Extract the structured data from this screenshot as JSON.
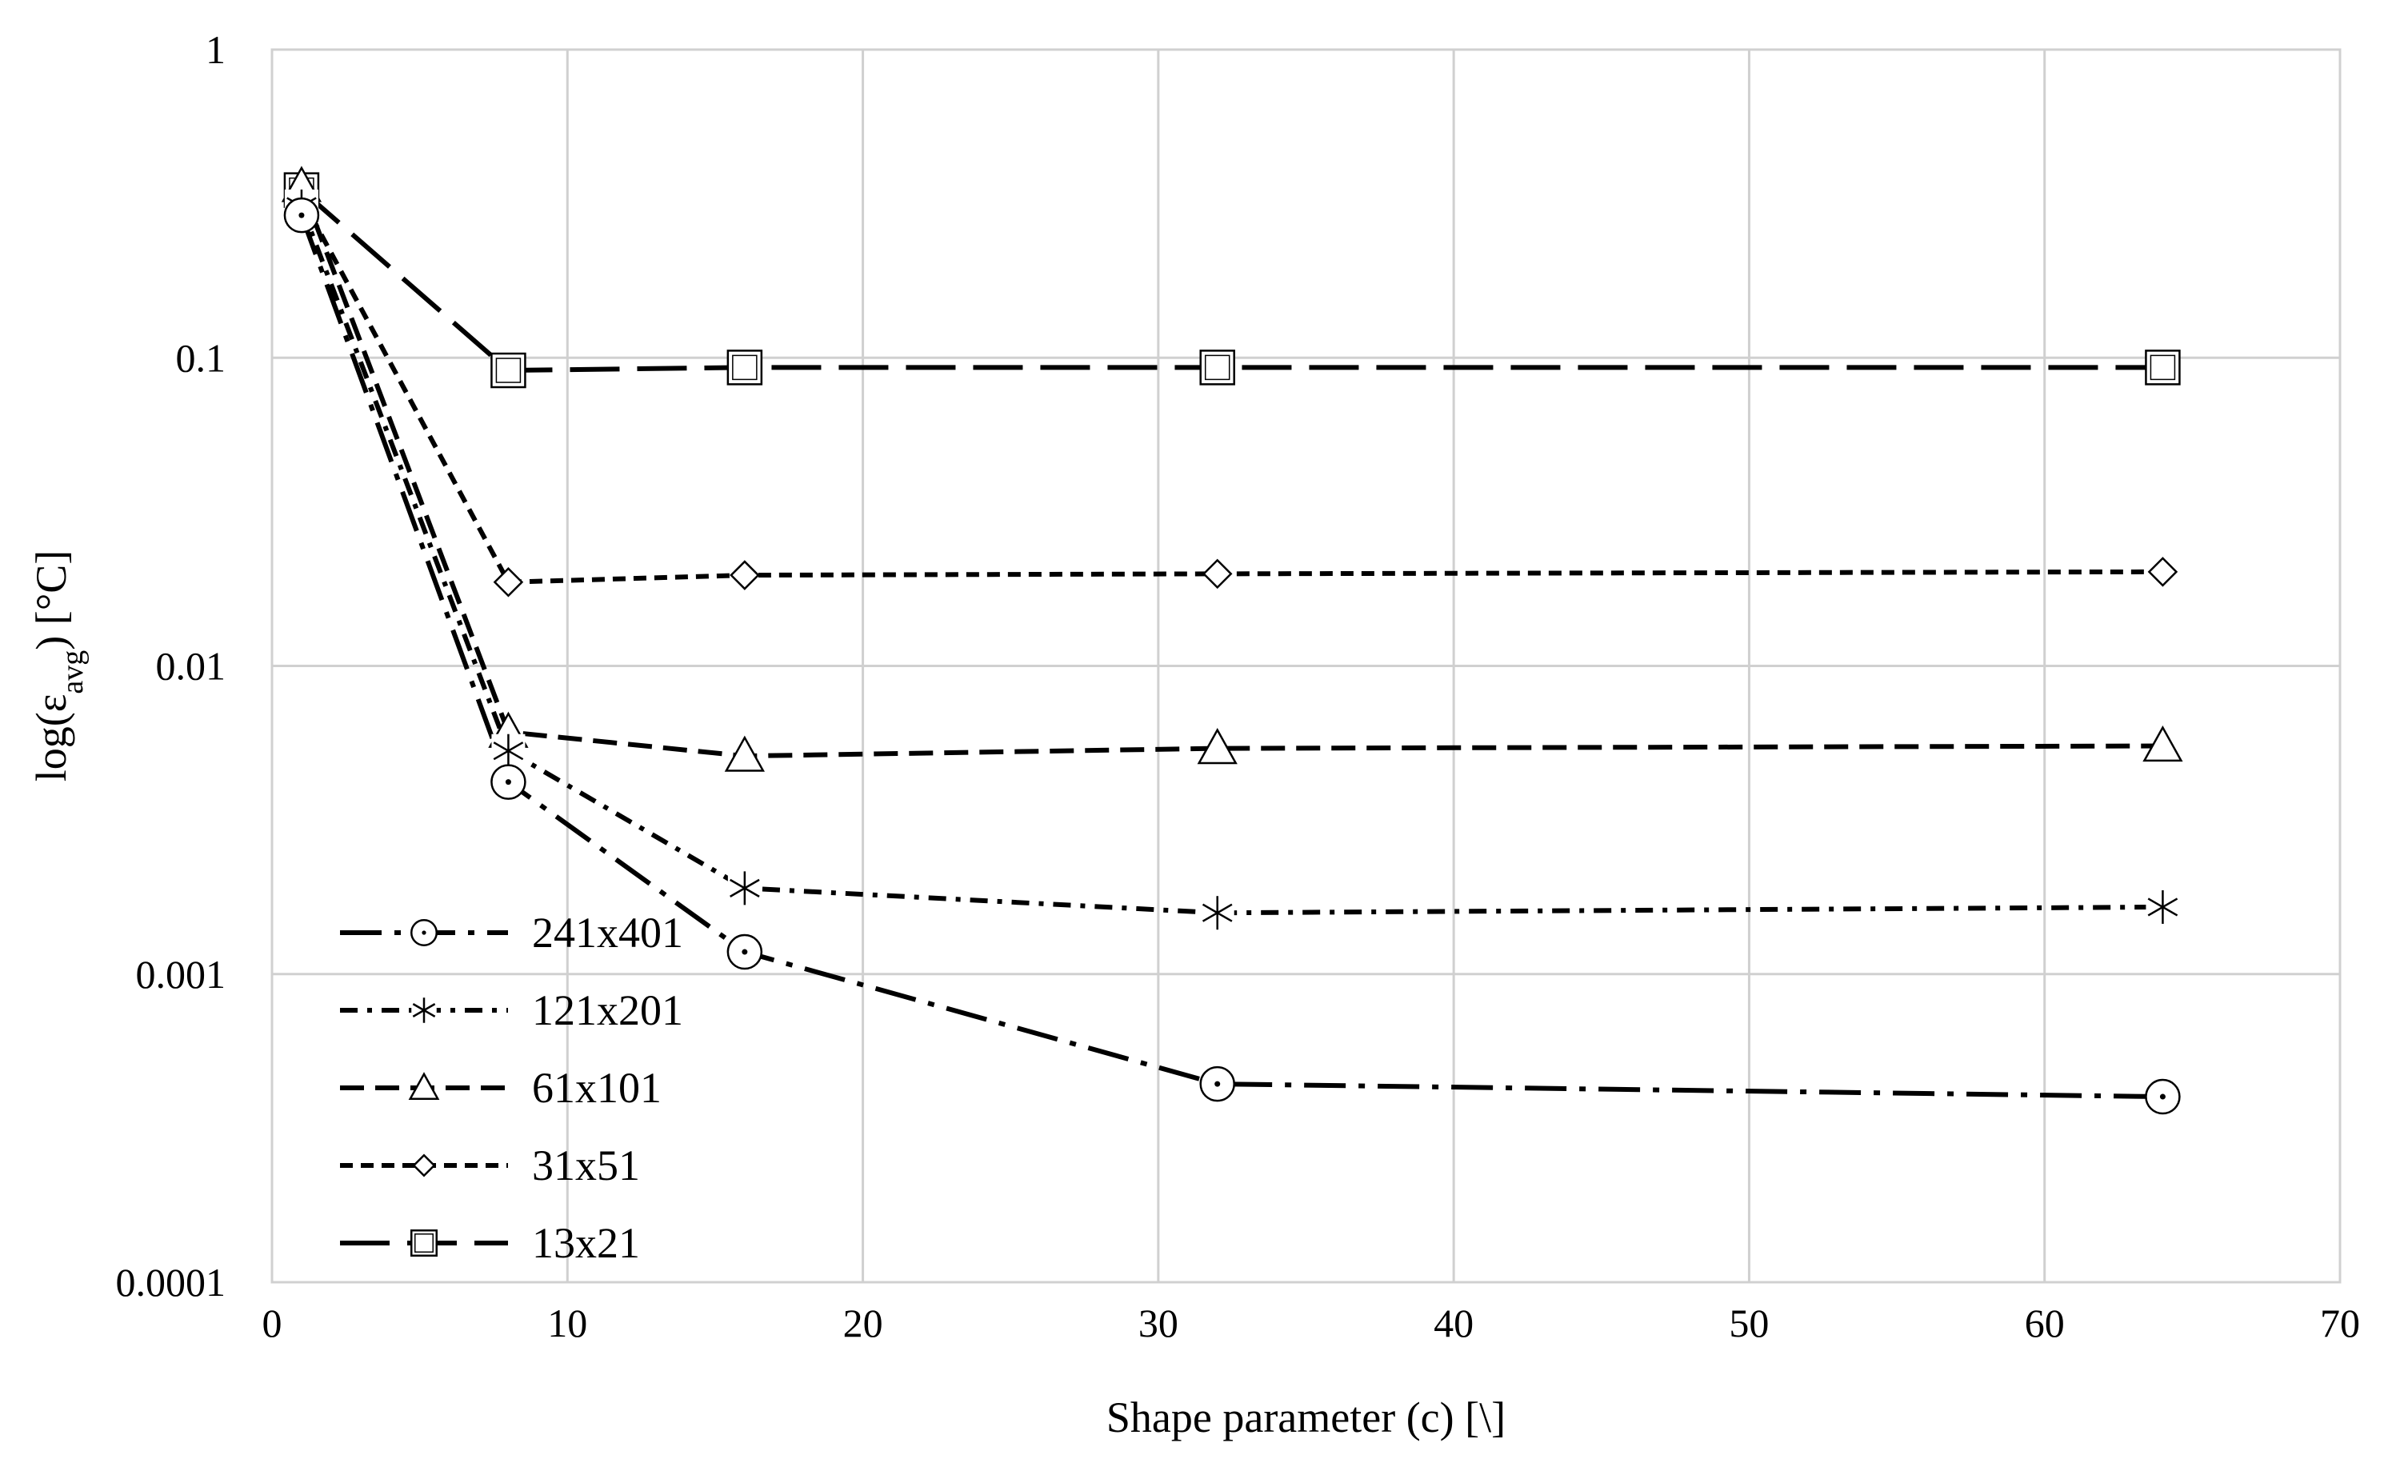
{
  "chart_data": {
    "type": "line",
    "title": "",
    "xlabel": "Shape parameter (c) [\\]",
    "ylabel_main": "log(ε",
    "ylabel_sub": "avg",
    "ylabel_tail": ") [°C]",
    "xlim": [
      0,
      70
    ],
    "ylim": [
      0.0001,
      1
    ],
    "yscale": "log",
    "grid": true,
    "legend_position": "bottom-left",
    "x_ticks": [
      "0",
      "10",
      "20",
      "30",
      "40",
      "50",
      "60",
      "70"
    ],
    "y_ticks": [
      "0.0001",
      "0.001",
      "0.01",
      "0.1",
      "1"
    ],
    "series": [
      {
        "name": "241x401",
        "marker": "circle-dot",
        "dash": "dash-dot",
        "x": [
          1,
          8,
          16,
          32,
          64
        ],
        "y": [
          0.29,
          0.0042,
          0.00118,
          0.00044,
          0.0004
        ]
      },
      {
        "name": "121x201",
        "marker": "asterisk",
        "dash": "short-dash-dot",
        "x": [
          1,
          8,
          16,
          32,
          64
        ],
        "y": [
          0.31,
          0.0053,
          0.0019,
          0.00158,
          0.00165
        ]
      },
      {
        "name": "61x101",
        "marker": "triangle",
        "dash": "medium-dash",
        "x": [
          1,
          8,
          16,
          32,
          64
        ],
        "y": [
          0.36,
          0.0061,
          0.0051,
          0.0054,
          0.0055
        ]
      },
      {
        "name": "31x51",
        "marker": "diamond",
        "dash": "short-dash",
        "x": [
          1,
          8,
          16,
          32,
          64
        ],
        "y": [
          0.33,
          0.0187,
          0.0197,
          0.0199,
          0.0202
        ]
      },
      {
        "name": "13x21",
        "marker": "square",
        "dash": "long-dash",
        "x": [
          1,
          8,
          16,
          32,
          64
        ],
        "y": [
          0.35,
          0.091,
          0.093,
          0.093,
          0.093
        ]
      }
    ]
  }
}
